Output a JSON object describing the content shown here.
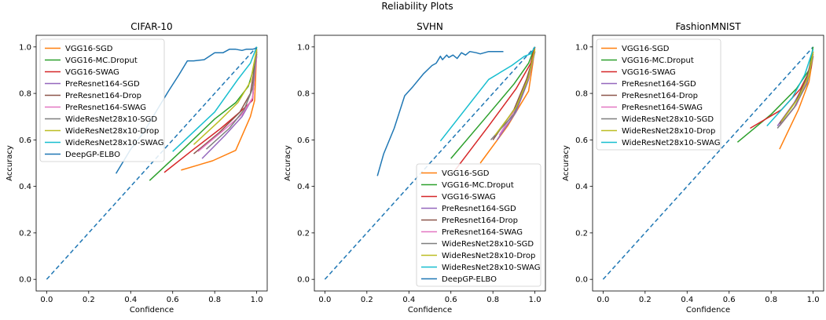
{
  "figure": {
    "title": "Reliability Plots"
  },
  "chart_data": [
    {
      "type": "line",
      "title": "CIFAR-10",
      "xlabel": "Confidence",
      "ylabel": "Accuracy",
      "xlim": [
        -0.05,
        1.05
      ],
      "ylim": [
        -0.05,
        1.05
      ],
      "xticks": [
        "0.0",
        "0.2",
        "0.4",
        "0.6",
        "0.8",
        "1.0"
      ],
      "yticks": [
        "0.0",
        "0.2",
        "0.4",
        "0.6",
        "0.8",
        "1.0"
      ],
      "legend_position": "top-left",
      "diagonal": {
        "style": "dashed",
        "color": "#1f77b4"
      },
      "series": [
        {
          "name": "VGG16-SGD",
          "color": "#ff7f0e",
          "points": [
            [
              0.64,
              0.47
            ],
            [
              0.79,
              0.51
            ],
            [
              0.9,
              0.555
            ],
            [
              0.97,
              0.7
            ],
            [
              0.99,
              0.77
            ],
            [
              1.0,
              0.98
            ]
          ]
        },
        {
          "name": "VGG16-MC.Droput",
          "color": "#2ca02c",
          "points": [
            [
              0.49,
              0.425
            ],
            [
              0.65,
              0.56
            ],
            [
              0.8,
              0.69
            ],
            [
              0.9,
              0.76
            ],
            [
              0.96,
              0.83
            ],
            [
              0.99,
              0.92
            ],
            [
              1.0,
              1.0
            ]
          ]
        },
        {
          "name": "VGG16-SWAG",
          "color": "#d62728",
          "points": [
            [
              0.56,
              0.46
            ],
            [
              0.7,
              0.56
            ],
            [
              0.83,
              0.65
            ],
            [
              0.92,
              0.72
            ],
            [
              0.98,
              0.77
            ],
            [
              1.0,
              0.99
            ]
          ]
        },
        {
          "name": "PreResnet164-SGD",
          "color": "#9467bd",
          "points": [
            [
              0.74,
              0.52
            ],
            [
              0.85,
              0.62
            ],
            [
              0.93,
              0.7
            ],
            [
              0.98,
              0.78
            ],
            [
              1.0,
              0.96
            ]
          ]
        },
        {
          "name": "PreResnet164-Drop",
          "color": "#8c564b",
          "points": [
            [
              0.7,
              0.54
            ],
            [
              0.82,
              0.63
            ],
            [
              0.92,
              0.72
            ],
            [
              0.97,
              0.8
            ],
            [
              1.0,
              0.97
            ]
          ]
        },
        {
          "name": "PreResnet164-SWAG",
          "color": "#e377c2",
          "points": [
            [
              0.72,
              0.55
            ],
            [
              0.84,
              0.64
            ],
            [
              0.93,
              0.71
            ],
            [
              0.98,
              0.78
            ],
            [
              1.0,
              0.96
            ]
          ]
        },
        {
          "name": "WideResNet28x10-SGD",
          "color": "#7f7f7f",
          "points": [
            [
              0.76,
              0.56
            ],
            [
              0.87,
              0.65
            ],
            [
              0.94,
              0.73
            ],
            [
              0.98,
              0.82
            ],
            [
              1.0,
              0.98
            ]
          ]
        },
        {
          "name": "WideResNet28x10-Drop",
          "color": "#bcbd22",
          "points": [
            [
              0.7,
              0.58
            ],
            [
              0.82,
              0.68
            ],
            [
              0.91,
              0.76
            ],
            [
              0.97,
              0.85
            ],
            [
              1.0,
              0.99
            ]
          ]
        },
        {
          "name": "WideResNet28x10-SWAG",
          "color": "#17becf",
          "points": [
            [
              0.6,
              0.55
            ],
            [
              0.8,
              0.72
            ],
            [
              0.91,
              0.86
            ],
            [
              0.97,
              0.93
            ],
            [
              1.0,
              1.0
            ]
          ]
        },
        {
          "name": "DeepGP-ELBO",
          "color": "#1f77b4",
          "points": [
            [
              0.33,
              0.455
            ],
            [
              0.4,
              0.56
            ],
            [
              0.46,
              0.63
            ],
            [
              0.52,
              0.72
            ],
            [
              0.58,
              0.81
            ],
            [
              0.63,
              0.88
            ],
            [
              0.67,
              0.94
            ],
            [
              0.7,
              0.94
            ],
            [
              0.75,
              0.945
            ],
            [
              0.8,
              0.975
            ],
            [
              0.84,
              0.975
            ],
            [
              0.87,
              0.99
            ],
            [
              0.9,
              0.99
            ],
            [
              0.93,
              0.985
            ],
            [
              0.95,
              0.99
            ],
            [
              0.98,
              0.99
            ],
            [
              1.0,
              0.995
            ]
          ]
        }
      ]
    },
    {
      "type": "line",
      "title": "SVHN",
      "xlabel": "Confidence",
      "ylabel": "Accuracy",
      "xlim": [
        -0.05,
        1.05
      ],
      "ylim": [
        -0.05,
        1.05
      ],
      "xticks": [
        "0.0",
        "0.2",
        "0.4",
        "0.6",
        "0.8",
        "1.0"
      ],
      "yticks": [
        "0.0",
        "0.2",
        "0.4",
        "0.6",
        "0.8",
        "1.0"
      ],
      "legend_position": "lower-right",
      "diagonal": {
        "style": "dashed",
        "color": "#1f77b4"
      },
      "series": [
        {
          "name": "VGG16-SGD",
          "color": "#ff7f0e",
          "points": [
            [
              0.74,
              0.5
            ],
            [
              0.87,
              0.66
            ],
            [
              0.97,
              0.81
            ],
            [
              0.99,
              0.93
            ],
            [
              1.0,
              1.0
            ]
          ]
        },
        {
          "name": "VGG16-MC.Droput",
          "color": "#2ca02c",
          "points": [
            [
              0.6,
              0.52
            ],
            [
              0.76,
              0.69
            ],
            [
              0.9,
              0.84
            ],
            [
              0.97,
              0.93
            ],
            [
              1.0,
              1.0
            ]
          ]
        },
        {
          "name": "VGG16-SWAG",
          "color": "#d62728",
          "points": [
            [
              0.62,
              0.47
            ],
            [
              0.78,
              0.66
            ],
            [
              0.91,
              0.82
            ],
            [
              0.98,
              0.93
            ],
            [
              1.0,
              1.0
            ]
          ]
        },
        {
          "name": "PreResnet164-SGD",
          "color": "#9467bd",
          "points": [
            [
              0.82,
              0.6
            ],
            [
              0.91,
              0.72
            ],
            [
              0.97,
              0.86
            ],
            [
              1.0,
              0.98
            ]
          ]
        },
        {
          "name": "PreResnet164-Drop",
          "color": "#8c564b",
          "points": [
            [
              0.8,
              0.6
            ],
            [
              0.9,
              0.73
            ],
            [
              0.96,
              0.86
            ],
            [
              1.0,
              0.98
            ]
          ]
        },
        {
          "name": "PreResnet164-SWAG",
          "color": "#e377c2",
          "points": [
            [
              0.83,
              0.62
            ],
            [
              0.92,
              0.75
            ],
            [
              0.97,
              0.87
            ],
            [
              1.0,
              0.98
            ]
          ]
        },
        {
          "name": "WideResNet28x10-SGD",
          "color": "#7f7f7f",
          "points": [
            [
              0.79,
              0.6
            ],
            [
              0.9,
              0.71
            ],
            [
              0.96,
              0.84
            ],
            [
              1.0,
              0.98
            ]
          ]
        },
        {
          "name": "WideResNet28x10-Drop",
          "color": "#bcbd22",
          "points": [
            [
              0.81,
              0.62
            ],
            [
              0.91,
              0.74
            ],
            [
              0.97,
              0.87
            ],
            [
              1.0,
              0.99
            ]
          ]
        },
        {
          "name": "WideResNet28x10-SWAG",
          "color": "#17becf",
          "points": [
            [
              0.55,
              0.595
            ],
            [
              0.78,
              0.86
            ],
            [
              0.89,
              0.92
            ],
            [
              0.95,
              0.96
            ],
            [
              0.98,
              0.97
            ],
            [
              1.0,
              1.0
            ]
          ]
        },
        {
          "name": "DeepGP-ELBO",
          "color": "#1f77b4",
          "points": [
            [
              0.25,
              0.445
            ],
            [
              0.28,
              0.54
            ],
            [
              0.33,
              0.65
            ],
            [
              0.38,
              0.79
            ],
            [
              0.42,
              0.83
            ],
            [
              0.47,
              0.885
            ],
            [
              0.51,
              0.92
            ],
            [
              0.53,
              0.93
            ],
            [
              0.55,
              0.96
            ],
            [
              0.56,
              0.945
            ],
            [
              0.58,
              0.965
            ],
            [
              0.59,
              0.955
            ],
            [
              0.61,
              0.965
            ],
            [
              0.63,
              0.95
            ],
            [
              0.65,
              0.975
            ],
            [
              0.67,
              0.965
            ],
            [
              0.69,
              0.98
            ],
            [
              0.72,
              0.975
            ],
            [
              0.74,
              0.97
            ],
            [
              0.78,
              0.98
            ],
            [
              0.82,
              0.98
            ],
            [
              0.85,
              0.98
            ]
          ]
        }
      ]
    },
    {
      "type": "line",
      "title": "FashionMNIST",
      "xlabel": "Confidence",
      "ylabel": "Accuracy",
      "xlim": [
        -0.05,
        1.05
      ],
      "ylim": [
        -0.05,
        1.05
      ],
      "xticks": [
        "0.0",
        "0.2",
        "0.4",
        "0.6",
        "0.8",
        "1.0"
      ],
      "yticks": [
        "0.0",
        "0.2",
        "0.4",
        "0.6",
        "0.8",
        "1.0"
      ],
      "legend_position": "top-left",
      "diagonal": {
        "style": "dashed",
        "color": "#1f77b4"
      },
      "series": [
        {
          "name": "VGG16-SGD",
          "color": "#ff7f0e",
          "points": [
            [
              0.84,
              0.56
            ],
            [
              0.93,
              0.73
            ],
            [
              0.98,
              0.85
            ],
            [
              1.0,
              0.96
            ]
          ]
        },
        {
          "name": "VGG16-MC.Droput",
          "color": "#2ca02c",
          "points": [
            [
              0.64,
              0.59
            ],
            [
              0.8,
              0.71
            ],
            [
              0.92,
              0.82
            ],
            [
              0.98,
              0.9
            ],
            [
              1.0,
              1.0
            ]
          ]
        },
        {
          "name": "VGG16-SWAG",
          "color": "#d62728",
          "points": [
            [
              0.7,
              0.65
            ],
            [
              0.85,
              0.73
            ],
            [
              0.94,
              0.82
            ],
            [
              0.99,
              0.91
            ],
            [
              1.0,
              0.98
            ]
          ]
        },
        {
          "name": "PreResnet164-SGD",
          "color": "#9467bd",
          "points": [
            [
              0.83,
              0.66
            ],
            [
              0.91,
              0.76
            ],
            [
              0.97,
              0.86
            ],
            [
              1.0,
              0.96
            ]
          ]
        },
        {
          "name": "PreResnet164-Drop",
          "color": "#8c564b",
          "points": [
            [
              0.84,
              0.67
            ],
            [
              0.92,
              0.77
            ],
            [
              0.97,
              0.87
            ],
            [
              1.0,
              0.97
            ]
          ]
        },
        {
          "name": "PreResnet164-SWAG",
          "color": "#e377c2",
          "points": [
            [
              0.84,
              0.66
            ],
            [
              0.92,
              0.75
            ],
            [
              0.97,
              0.85
            ],
            [
              1.0,
              0.96
            ]
          ]
        },
        {
          "name": "WideResNet28x10-SGD",
          "color": "#7f7f7f",
          "points": [
            [
              0.83,
              0.65
            ],
            [
              0.91,
              0.74
            ],
            [
              0.97,
              0.84
            ],
            [
              1.0,
              0.96
            ]
          ]
        },
        {
          "name": "WideResNet28x10-Drop",
          "color": "#bcbd22",
          "points": [
            [
              0.85,
              0.68
            ],
            [
              0.93,
              0.78
            ],
            [
              0.98,
              0.88
            ],
            [
              1.0,
              0.98
            ]
          ]
        },
        {
          "name": "WideResNet28x10-SWAG",
          "color": "#17becf",
          "points": [
            [
              0.78,
              0.66
            ],
            [
              0.9,
              0.78
            ],
            [
              0.96,
              0.88
            ],
            [
              1.0,
              0.99
            ]
          ]
        }
      ]
    }
  ]
}
